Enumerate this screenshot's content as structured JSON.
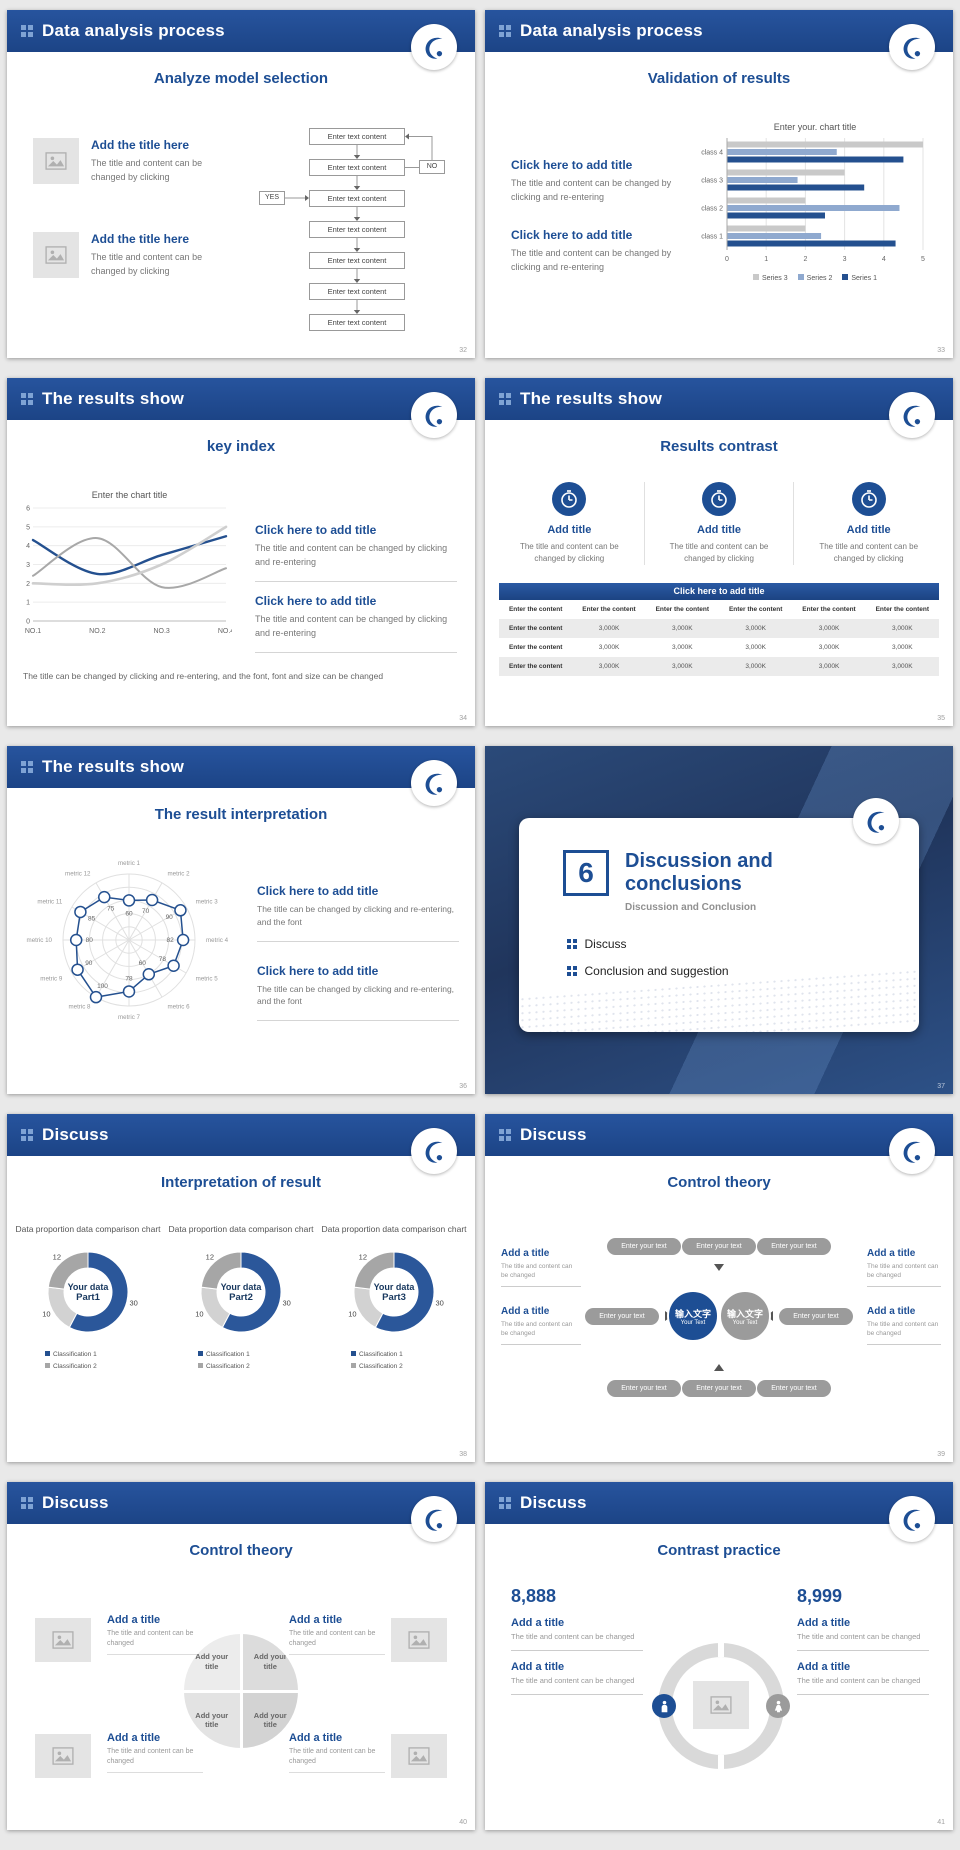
{
  "page": {
    "background": "#e9e9e9"
  },
  "theme": {
    "header_blue": "#1d4e94",
    "bar_dark": "#24508f",
    "bar_mid": "#8fa9cf",
    "bar_light": "#c9c9c9"
  },
  "slides": {
    "s32": {
      "header": "Data analysis process",
      "title": "Analyze model selection",
      "page_number": "32",
      "items": [
        {
          "title": "Add the title here",
          "body": "The title and content can be changed by clicking"
        },
        {
          "title": "Add the title here",
          "body": "The title and content can be changed by clicking"
        }
      ],
      "flow": {
        "boxes": [
          "Enter text content",
          "Enter text content",
          "Enter text content",
          "Enter text content",
          "Enter text content",
          "Enter text content",
          "Enter text content"
        ],
        "yes_label": "YES",
        "no_label": "NO"
      }
    },
    "s33": {
      "header": "Data analysis process",
      "title": "Validation of results",
      "page_number": "33",
      "items": [
        {
          "title": "Click here to add title",
          "body": "The title and content can be changed by clicking and re-entering"
        },
        {
          "title": "Click here to add title",
          "body": "The title and content can be changed by clicking and re-entering"
        }
      ],
      "chart": {
        "type": "bar",
        "title": "Enter your. chart title",
        "categories": [
          "class 4",
          "class 3",
          "class 2",
          "class 1"
        ],
        "series": [
          {
            "name": "Series 3",
            "color": "#c9c9c9",
            "values": [
              5,
              3,
              2,
              2
            ]
          },
          {
            "name": "Series 2",
            "color": "#8fa9cf",
            "values": [
              2.8,
              1.8,
              4.4,
              2.4
            ]
          },
          {
            "name": "Series 1",
            "color": "#24508f",
            "values": [
              4.5,
              3.5,
              2.5,
              4.3
            ]
          }
        ],
        "x_ticks": [
          0,
          1,
          2,
          3,
          4,
          5
        ],
        "xlim": [
          0,
          5
        ]
      }
    },
    "s34": {
      "header": "The results show",
      "title": "key index",
      "page_number": "34",
      "chart": {
        "type": "line",
        "title": "Enter the chart title",
        "categories": [
          "NO.1",
          "NO.2",
          "NO.3",
          "NO.4"
        ],
        "series": [
          {
            "name": "Series 1",
            "color": "#24508f",
            "width": 2.4,
            "values": [
              4.3,
              2.5,
              3.5,
              4.5
            ]
          },
          {
            "name": "Series 2",
            "color": "#a8a8a8",
            "width": 2,
            "values": [
              2.4,
              4.4,
              1.8,
              2.8
            ]
          },
          {
            "name": "Series 3",
            "color": "#cfcfcf",
            "width": 2.6,
            "values": [
              2,
              2,
              3,
              5
            ]
          }
        ],
        "y_ticks": [
          0,
          1,
          2,
          3,
          4,
          5,
          6
        ],
        "ylim": [
          0,
          6
        ]
      },
      "items": [
        {
          "title": "Click here to add title",
          "body": "The title and content can be changed by clicking and re-entering"
        },
        {
          "title": "Click here to add title",
          "body": "The title and content can be changed by clicking and re-entering"
        }
      ],
      "note": "The title can be changed by clicking and re-entering, and the font, font and size can be changed"
    },
    "s35": {
      "header": "The results show",
      "title": "Results contrast",
      "page_number": "35",
      "columns": [
        {
          "title": "Add title",
          "body": "The title and content can be changed by clicking"
        },
        {
          "title": "Add title",
          "body": "The title and content can be changed by clicking"
        },
        {
          "title": "Add title",
          "body": "The title and content can be changed by clicking"
        }
      ],
      "table": {
        "bar_title": "Click here to add title",
        "header": [
          "Enter the content",
          "Enter the content",
          "Enter the content",
          "Enter the content",
          "Enter the content",
          "Enter the content"
        ],
        "rows": [
          [
            "Enter the content",
            "3,000K",
            "3,000K",
            "3,000K",
            "3,000K",
            "3,000K"
          ],
          [
            "Enter the content",
            "3,000K",
            "3,000K",
            "3,000K",
            "3,000K",
            "3,000K"
          ],
          [
            "Enter the content",
            "3,000K",
            "3,000K",
            "3,000K",
            "3,000K",
            "3,000K"
          ]
        ]
      }
    },
    "s36": {
      "header": "The results show",
      "title": "The result interpretation",
      "page_number": "36",
      "chart": {
        "type": "radar",
        "labels": [
          "metric 1",
          "metric 2",
          "metric 3",
          "metric 4",
          "metric 5",
          "metric 6",
          "metric 7",
          "metric 8",
          "metric 9",
          "metric 10",
          "metric 11",
          "metric 12"
        ],
        "values": [
          60,
          70,
          90,
          82,
          78,
          60,
          78,
          100,
          90,
          80,
          85,
          75
        ],
        "max": 100
      },
      "items": [
        {
          "title": "Click here to add title",
          "body": "The title can be changed by clicking and re-entering, and the font"
        },
        {
          "title": "Click here to add title",
          "body": "The title can be changed by clicking and re-entering, and the font"
        }
      ]
    },
    "s37": {
      "number": "6",
      "title": "Discussion and conclusions",
      "subtitle": "Discussion and Conclusion",
      "bullets": [
        "Discuss",
        "Conclusion and suggestion"
      ],
      "page_number": "37"
    },
    "s38": {
      "header": "Discuss",
      "title": "Interpretation of result",
      "page_number": "38",
      "donuts": [
        {
          "chart_title": "Data proportion data comparison chart",
          "center_line1": "Your data",
          "center_line2": "Part1"
        },
        {
          "chart_title": "Data proportion data comparison chart",
          "center_line1": "Your data",
          "center_line2": "Part2"
        },
        {
          "chart_title": "Data proportion data comparison chart",
          "center_line1": "Your data",
          "center_line2": "Part3"
        }
      ],
      "donut_data": {
        "type": "pie",
        "slices": [
          {
            "label": "30",
            "value": 30,
            "color": "#2b579a"
          },
          {
            "label": "10",
            "value": 10,
            "color": "#d2d2d2"
          },
          {
            "label": "12",
            "value": 12,
            "color": "#a6a6a6"
          }
        ]
      },
      "legend": [
        "Classification 1",
        "Classification 2"
      ],
      "legend_colors": [
        "#24508f",
        "#a6a6a6"
      ]
    },
    "s39": {
      "header": "Discuss",
      "title": "Control theory",
      "page_number": "39",
      "pills": [
        "Enter your text",
        "Enter your text",
        "Enter your text",
        "Enter your text",
        "Enter your text",
        "Enter your text",
        "Enter your text",
        "Enter your text"
      ],
      "center": [
        {
          "line1": "输入文字",
          "line2": "Your Text"
        },
        {
          "line1": "输入文字",
          "line2": "Your Text"
        }
      ],
      "side_items": [
        {
          "title": "Add a title",
          "body": "The title and content can be changed"
        },
        {
          "title": "Add a title",
          "body": "The title and content can be changed"
        },
        {
          "title": "Add a title",
          "body": "The title and content can be changed"
        },
        {
          "title": "Add a title",
          "body": "The title and content can be changed"
        }
      ]
    },
    "s40": {
      "header": "Discuss",
      "title": "Control theory",
      "page_number": "40",
      "items": [
        {
          "title": "Add a title",
          "body": "The title and content can be changed"
        },
        {
          "title": "Add a title",
          "body": "The title and content can be changed"
        },
        {
          "title": "Add a title",
          "body": "The title and content can be changed"
        },
        {
          "title": "Add a title",
          "body": "The title and content can be changed"
        }
      ],
      "quadrants": [
        "Add your title",
        "Add your title",
        "Add your title",
        "Add your title"
      ]
    },
    "s41": {
      "header": "Discuss",
      "title": "Contrast practice",
      "page_number": "41",
      "left": {
        "number": "8,888",
        "items": [
          {
            "title": "Add a title",
            "body": "The title and content can be changed"
          },
          {
            "title": "Add a title",
            "body": "The title and content can be changed"
          }
        ]
      },
      "right": {
        "number": "8,999",
        "items": [
          {
            "title": "Add a title",
            "body": "The title and content can be changed"
          },
          {
            "title": "Add a title",
            "body": "The title and content can be changed"
          }
        ]
      }
    }
  }
}
